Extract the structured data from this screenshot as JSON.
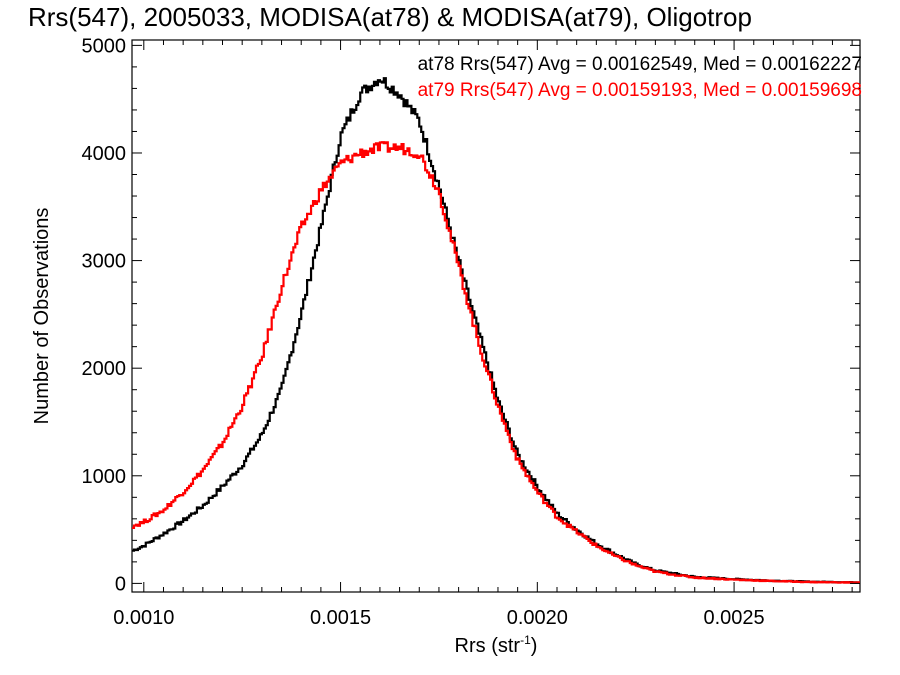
{
  "chart_data": {
    "type": "line",
    "style": "step",
    "title": "Rrs(547), 2005033, MODISA(at78) & MODISA(at79), Oligotrop",
    "xlabel": "Rrs (str",
    "xlabel_sup": "-1",
    "xlabel_close": ")",
    "ylabel": "Number of Observations",
    "xlim": [
      0.00097,
      0.00282
    ],
    "ylim": [
      -80,
      5050
    ],
    "xticks": [
      0.001,
      0.0015,
      0.002,
      0.0025
    ],
    "xtick_labels": [
      "0.0010",
      "0.0015",
      "0.0020",
      "0.0025"
    ],
    "yticks": [
      0,
      1000,
      2000,
      3000,
      4000,
      5000
    ],
    "ytick_labels": [
      "0",
      "1000",
      "2000",
      "3000",
      "4000",
      "5000"
    ],
    "grid": false,
    "legend_position": "top-right",
    "annotations": [
      "at78 Rrs(547) Avg = 0.00162549, Med = 0.00162227",
      "at79 Rrs(547) Avg = 0.00159193, Med = 0.00159698"
    ],
    "series": [
      {
        "color": "#000000",
        "x": [
          0.00097,
          0.001,
          0.00105,
          0.0011,
          0.00115,
          0.0012,
          0.00125,
          0.0013,
          0.00135,
          0.0014,
          0.00145,
          0.0015,
          0.00155,
          0.0016,
          0.00165,
          0.0017,
          0.00175,
          0.0018,
          0.00185,
          0.0019,
          0.00195,
          0.002,
          0.00205,
          0.0021,
          0.00215,
          0.0022,
          0.00225,
          0.0023,
          0.00235,
          0.0024,
          0.0025,
          0.0026,
          0.0027,
          0.0028
        ],
        "y": [
          300,
          350,
          460,
          580,
          720,
          900,
          1100,
          1380,
          1800,
          2500,
          3300,
          4150,
          4550,
          4700,
          4550,
          4300,
          3700,
          3000,
          2350,
          1700,
          1200,
          900,
          650,
          500,
          370,
          270,
          180,
          120,
          90,
          60,
          40,
          25,
          15,
          10
        ]
      },
      {
        "color": "#ff0000",
        "x": [
          0.00097,
          0.001,
          0.00105,
          0.0011,
          0.00115,
          0.0012,
          0.00125,
          0.0013,
          0.00135,
          0.0014,
          0.00145,
          0.0015,
          0.00155,
          0.0016,
          0.00165,
          0.0017,
          0.00175,
          0.0018,
          0.00185,
          0.0019,
          0.00195,
          0.002,
          0.00205,
          0.0021,
          0.00215,
          0.0022,
          0.00225,
          0.0023,
          0.00235,
          0.0024,
          0.0025,
          0.0026,
          0.0027,
          0.0028
        ],
        "y": [
          530,
          570,
          680,
          850,
          1050,
          1300,
          1650,
          2100,
          2750,
          3300,
          3650,
          3900,
          4000,
          4050,
          4050,
          4000,
          3650,
          2950,
          2250,
          1650,
          1150,
          850,
          620,
          480,
          350,
          250,
          170,
          110,
          80,
          55,
          35,
          22,
          12,
          8
        ]
      }
    ]
  }
}
